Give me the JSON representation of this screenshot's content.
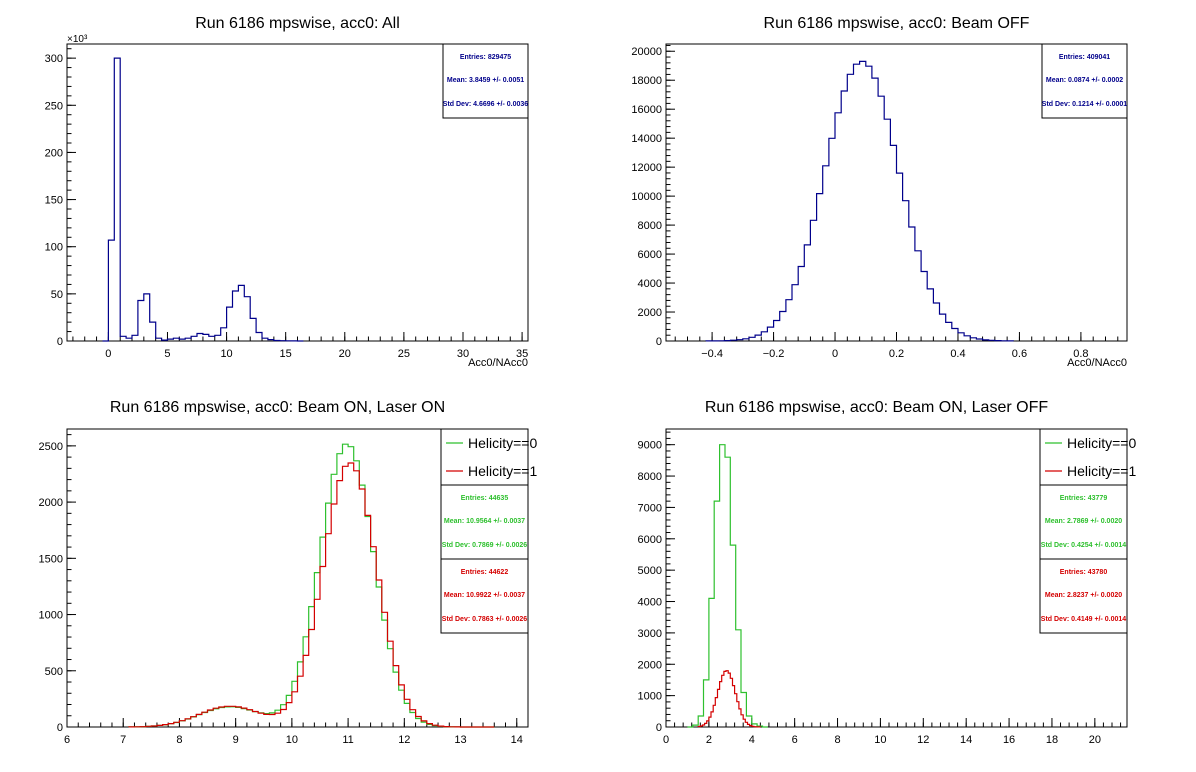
{
  "colors": {
    "frame": "#000000",
    "series_all": "#00008b",
    "series_h0": "#2ec02e",
    "series_h1": "#d40000"
  },
  "chart_data": [
    {
      "type": "histogram",
      "title": "Run 6186 mpswise, acc0: All",
      "xlabel": "Acc0/NAcc0",
      "ylabel": "",
      "y_multiplier_label": "×10³",
      "xlim": [
        -3.5,
        35.5
      ],
      "ylim": [
        0,
        315000
      ],
      "xticks": [
        0,
        5,
        10,
        15,
        20,
        25,
        30,
        35
      ],
      "yticks": [
        0,
        50000,
        100000,
        150000,
        200000,
        250000,
        300000
      ],
      "ytick_labels": [
        "0",
        "50",
        "100",
        "150",
        "200",
        "250",
        "300"
      ],
      "bin_width": 0.5,
      "series": [
        {
          "color": "#00008b",
          "x": [
            -0.5,
            0,
            0.5,
            1,
            1.5,
            2,
            2.5,
            3,
            3.5,
            4,
            4.5,
            5,
            5.5,
            6,
            6.5,
            7,
            7.5,
            8,
            8.5,
            9,
            9.5,
            10,
            10.5,
            11,
            11.5,
            12,
            12.5,
            13,
            13.5,
            14,
            14.5,
            15,
            15.5,
            16
          ],
          "values": [
            0,
            107000,
            300000,
            5000,
            3000,
            6000,
            43000,
            50000,
            20000,
            3000,
            1000,
            2000,
            3000,
            2000,
            3000,
            5000,
            8000,
            7000,
            5000,
            6000,
            14000,
            36000,
            53000,
            59000,
            47000,
            24000,
            9000,
            3000,
            1500,
            500,
            300,
            200,
            100,
            0
          ]
        }
      ],
      "stats": [
        {
          "color": "#00008b",
          "entries": "Entries: 829475",
          "mean": "Mean: 3.8459 +/- 0.0051",
          "std": "Std Dev: 4.6696 +/- 0.0036"
        }
      ]
    },
    {
      "type": "histogram",
      "title": "Run 6186 mpswise, acc0: Beam OFF",
      "xlabel": "Acc0/NAcc0",
      "ylabel": "",
      "xlim": [
        -0.55,
        0.95
      ],
      "ylim": [
        0,
        20500
      ],
      "xticks": [
        -0.4,
        -0.2,
        0,
        0.2,
        0.4,
        0.6,
        0.8
      ],
      "xtick_labels": [
        "−0.4",
        "−0.2",
        "0",
        "0.2",
        "0.4",
        "0.6",
        "0.8"
      ],
      "yticks": [
        0,
        2000,
        4000,
        6000,
        8000,
        10000,
        12000,
        14000,
        16000,
        18000,
        20000
      ],
      "mean": 0.0874,
      "std": 0.1214,
      "peak": 19300,
      "bin_width": 0.02,
      "fit_range": [
        -0.42,
        0.56
      ],
      "series": [
        {
          "color": "#00008b"
        }
      ],
      "stats": [
        {
          "color": "#00008b",
          "entries": "Entries: 409041",
          "mean": "Mean: 0.0874 +/- 0.0002",
          "std": "Std Dev: 0.1214 +/- 0.0001"
        }
      ]
    },
    {
      "type": "histogram",
      "title": "Run 6186 mpswise, acc0: Beam ON, Laser ON",
      "xlabel": "",
      "ylabel": "",
      "xlim": [
        6,
        14.2
      ],
      "ylim": [
        0,
        2650
      ],
      "xticks": [
        6,
        7,
        8,
        9,
        10,
        11,
        12,
        13,
        14
      ],
      "yticks": [
        0,
        500,
        1000,
        1500,
        2000,
        2500
      ],
      "bin_width": 0.1,
      "range": [
        7.1,
        13.5
      ],
      "series": [
        {
          "name": "Helicity==0",
          "color": "#2ec02e",
          "peak_x": 10.98,
          "peak": 2520,
          "sigma": 0.48,
          "bump_x": 8.9,
          "bump": 180,
          "bump_sigma": 0.55
        },
        {
          "name": "Helicity==1",
          "color": "#d40000",
          "peak_x": 11.03,
          "peak": 2350,
          "sigma": 0.48,
          "bump_x": 8.9,
          "bump": 185,
          "bump_sigma": 0.55
        }
      ],
      "stats": [
        {
          "color": "#2ec02e",
          "entries": "Entries: 44635",
          "mean": "Mean: 10.9564 +/- 0.0037",
          "std": "Std Dev: 0.7869 +/- 0.0026"
        },
        {
          "color": "#d40000",
          "entries": "Entries: 44622",
          "mean": "Mean: 10.9922 +/- 0.0037",
          "std": "Std Dev: 0.7863 +/- 0.0026"
        }
      ]
    },
    {
      "type": "histogram",
      "title": "Run 6186 mpswise, acc0: Beam ON, Laser OFF",
      "xlabel": "",
      "ylabel": "",
      "xlim": [
        0,
        21.5
      ],
      "ylim": [
        0,
        9500
      ],
      "xticks": [
        0,
        2,
        4,
        6,
        8,
        10,
        12,
        14,
        16,
        18,
        20
      ],
      "yticks": [
        0,
        1000,
        2000,
        3000,
        4000,
        5000,
        6000,
        7000,
        8000,
        9000
      ],
      "series": [
        {
          "name": "Helicity==0",
          "color": "#2ec02e",
          "bin_width": 0.25,
          "x": [
            1.0,
            1.25,
            1.5,
            1.75,
            2.0,
            2.25,
            2.5,
            2.75,
            3.0,
            3.25,
            3.5,
            3.75,
            4.0,
            4.25,
            4.5
          ],
          "values": [
            0,
            60,
            350,
            1500,
            4100,
            7200,
            9000,
            8600,
            5800,
            3100,
            1100,
            350,
            100,
            30,
            0
          ]
        },
        {
          "name": "Helicity==1",
          "color": "#d40000",
          "mean": 2.8237,
          "std": 0.4149,
          "peak": 1800,
          "bin_width": 0.1,
          "range": [
            1.5,
            4.3
          ]
        }
      ],
      "stats": [
        {
          "color": "#2ec02e",
          "entries": "Entries: 43779",
          "mean": "Mean: 2.7869 +/- 0.0020",
          "std": "Std Dev: 0.4254 +/- 0.0014"
        },
        {
          "color": "#d40000",
          "entries": "Entries: 43780",
          "mean": "Mean: 2.8237 +/- 0.0020",
          "std": "Std Dev: 0.4149 +/- 0.0014"
        }
      ]
    }
  ]
}
